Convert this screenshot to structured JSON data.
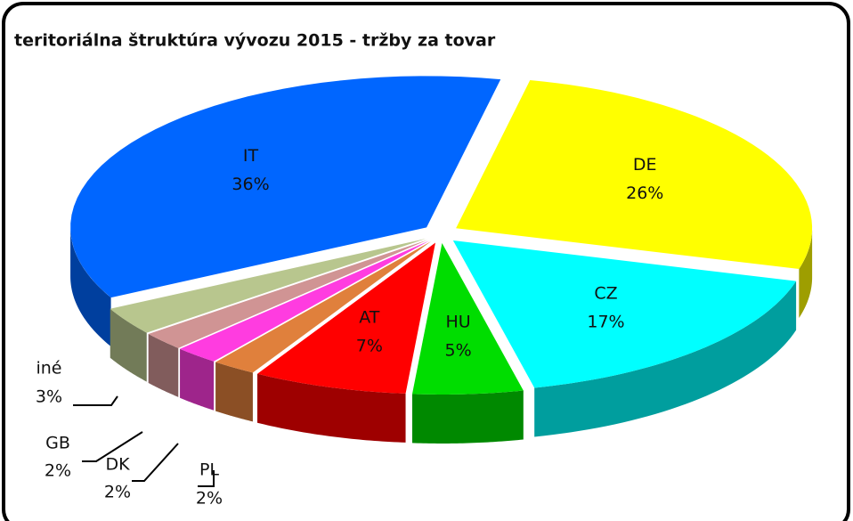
{
  "chart_data": {
    "type": "pie3d",
    "title": "teritoriálna štruktúra vývozu 2015 - tržby za tovar",
    "categories": [
      "DE",
      "CZ",
      "HU",
      "AT",
      "PL",
      "DK",
      "GB",
      "iné",
      "IT"
    ],
    "values": [
      26,
      17,
      5,
      7,
      2,
      2,
      2,
      3,
      36
    ],
    "value_labels": [
      "26%",
      "17%",
      "5%",
      "7%",
      "2%",
      "2%",
      "2%",
      "3%",
      "36%"
    ],
    "colors": [
      "#ffff00",
      "#00ffff",
      "#00dd00",
      "#ff0000",
      "#e0803c",
      "#ff3ce0",
      "#d09494",
      "#b8c68e",
      "#0066ff"
    ]
  }
}
